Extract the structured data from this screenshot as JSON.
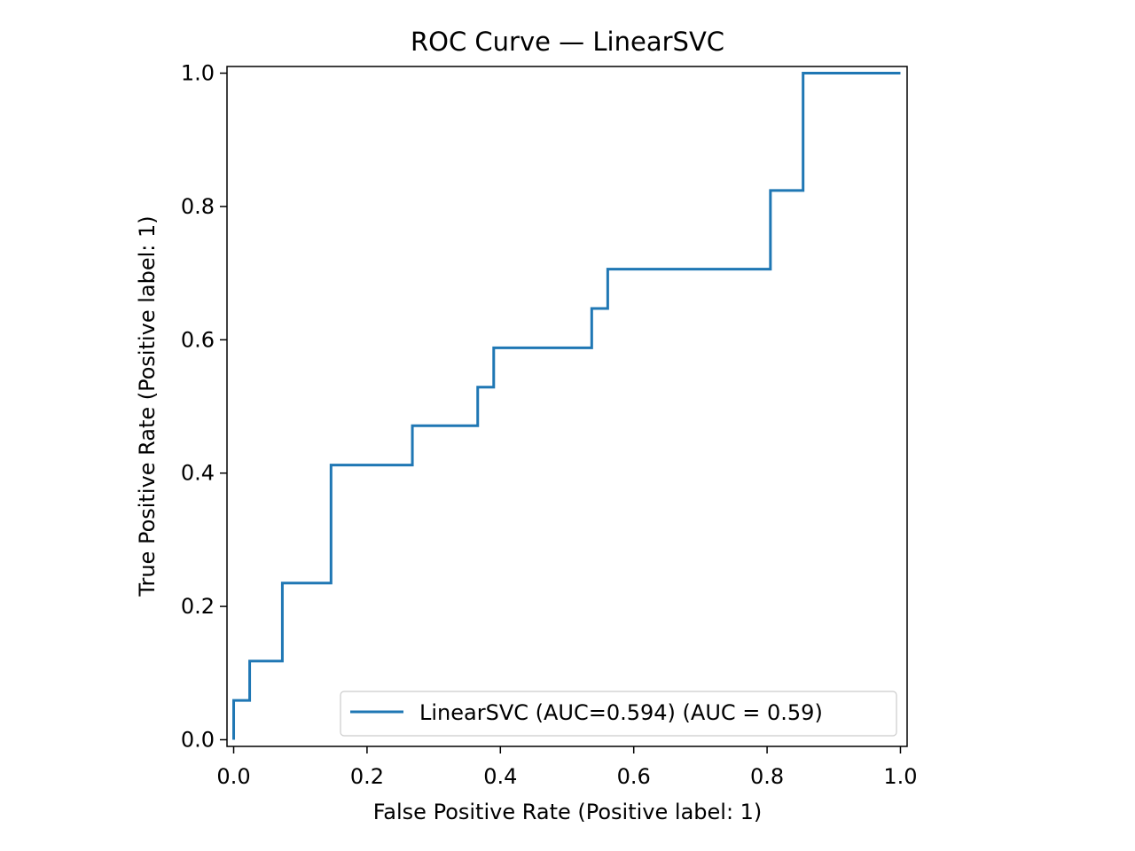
{
  "chart_data": {
    "type": "line",
    "title": "ROC Curve — LinearSVC",
    "xlabel": "False Positive Rate (Positive label: 1)",
    "ylabel": "True Positive Rate (Positive label: 1)",
    "xlim": [
      -0.01,
      1.01
    ],
    "ylim": [
      -0.01,
      1.01
    ],
    "xticks": [
      0.0,
      0.2,
      0.4,
      0.6,
      0.8,
      1.0
    ],
    "xtick_labels": [
      "0.0",
      "0.2",
      "0.4",
      "0.6",
      "0.8",
      "1.0"
    ],
    "yticks": [
      0.0,
      0.2,
      0.4,
      0.6,
      0.8,
      1.0
    ],
    "ytick_labels": [
      "0.0",
      "0.2",
      "0.4",
      "0.6",
      "0.8",
      "1.0"
    ],
    "grid": false,
    "legend_position": "lower-right",
    "series": [
      {
        "name": "LinearSVC (AUC=0.594) (AUC = 0.59)",
        "color": "#1f77b4",
        "x": [
          0.0,
          0.0,
          0.024,
          0.024,
          0.073,
          0.073,
          0.146,
          0.146,
          0.268,
          0.268,
          0.366,
          0.366,
          0.39,
          0.39,
          0.537,
          0.537,
          0.561,
          0.561,
          0.805,
          0.805,
          0.854,
          0.854,
          1.0
        ],
        "y": [
          0.0,
          0.059,
          0.059,
          0.118,
          0.118,
          0.235,
          0.235,
          0.412,
          0.412,
          0.471,
          0.471,
          0.529,
          0.529,
          0.588,
          0.588,
          0.647,
          0.647,
          0.706,
          0.706,
          0.824,
          0.824,
          1.0,
          1.0
        ]
      }
    ]
  }
}
